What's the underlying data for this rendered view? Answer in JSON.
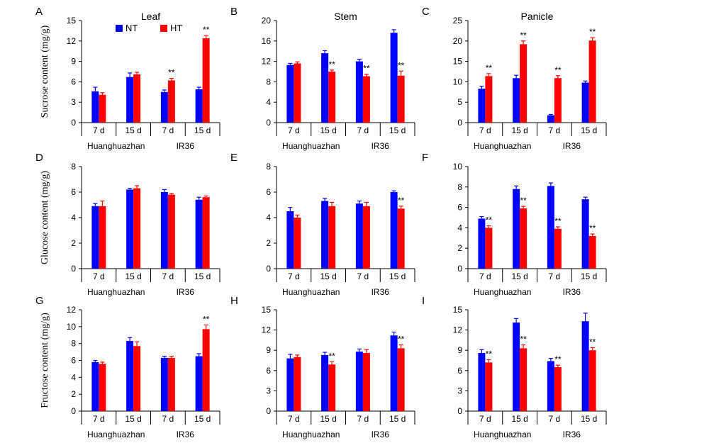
{
  "colors": {
    "NT": "#0000ff",
    "HT": "#ff0000",
    "axis": "#000000"
  },
  "legend": [
    {
      "name": "NT",
      "color": "#0000ff"
    },
    {
      "name": "HT",
      "color": "#ff0000"
    }
  ],
  "chart_data": [
    {
      "id": "A",
      "panel_letter": "A",
      "title": "Leaf",
      "type": "bar",
      "ylabel": "Sucrose content (mg/g)",
      "ylim": [
        0,
        15
      ],
      "yticks": [
        0,
        3,
        6,
        9,
        12,
        15
      ],
      "categories": [
        "7 d",
        "15 d",
        "7 d",
        "15 d"
      ],
      "groups": [
        "Huanghuazhan",
        "IR36"
      ],
      "series": [
        {
          "name": "NT",
          "values": [
            4.6,
            6.7,
            4.5,
            4.9
          ],
          "errors": [
            0.6,
            0.6,
            0.3,
            0.3
          ]
        },
        {
          "name": "HT",
          "values": [
            4.1,
            7.1,
            6.2,
            12.4
          ],
          "errors": [
            0.3,
            0.3,
            0.3,
            0.4
          ]
        }
      ],
      "significance": [
        "",
        "",
        "**",
        "**"
      ]
    },
    {
      "id": "B",
      "panel_letter": "B",
      "title": "Stem",
      "type": "bar",
      "ylabel": "",
      "ylim": [
        0,
        20
      ],
      "yticks": [
        0,
        4,
        8,
        12,
        16,
        20
      ],
      "categories": [
        "7 d",
        "15 d",
        "7 d",
        "15 d"
      ],
      "groups": [
        "Huanghuazhan",
        "IR36"
      ],
      "series": [
        {
          "name": "NT",
          "values": [
            11.3,
            13.6,
            12.0,
            17.6
          ],
          "errors": [
            0.3,
            0.5,
            0.4,
            0.6
          ]
        },
        {
          "name": "HT",
          "values": [
            11.6,
            10.0,
            9.1,
            9.2
          ],
          "errors": [
            0.3,
            0.3,
            0.4,
            0.9
          ]
        }
      ],
      "significance": [
        "",
        "**",
        "**",
        "**"
      ]
    },
    {
      "id": "C",
      "panel_letter": "C",
      "title": "Panicle",
      "type": "bar",
      "ylabel": "",
      "ylim": [
        0,
        25
      ],
      "yticks": [
        0,
        5,
        10,
        15,
        20,
        25
      ],
      "categories": [
        "7 d",
        "15 d",
        "7 d",
        "15 d"
      ],
      "groups": [
        "Huanghuazhan",
        "IR36"
      ],
      "series": [
        {
          "name": "NT",
          "values": [
            8.3,
            10.9,
            1.8,
            9.8
          ],
          "errors": [
            0.6,
            0.7,
            0.2,
            0.4
          ]
        },
        {
          "name": "HT",
          "values": [
            11.4,
            19.2,
            10.9,
            20.1
          ],
          "errors": [
            0.6,
            0.8,
            0.6,
            0.7
          ]
        }
      ],
      "significance": [
        "**",
        "**",
        "**",
        "**"
      ]
    },
    {
      "id": "D",
      "panel_letter": "D",
      "title": "",
      "type": "bar",
      "ylabel": "Glucose content (mg/g)",
      "ylim": [
        0,
        8
      ],
      "yticks": [
        0,
        2,
        4,
        6,
        8
      ],
      "categories": [
        "7 d",
        "15 d",
        "7 d",
        "15 d"
      ],
      "groups": [
        "Huanghuazhan",
        "IR36"
      ],
      "series": [
        {
          "name": "NT",
          "values": [
            4.9,
            6.2,
            6.0,
            5.4
          ],
          "errors": [
            0.2,
            0.1,
            0.2,
            0.2
          ]
        },
        {
          "name": "HT",
          "values": [
            4.9,
            6.3,
            5.8,
            5.6
          ],
          "errors": [
            0.4,
            0.2,
            0.1,
            0.1
          ]
        }
      ],
      "significance": [
        "",
        "",
        "",
        ""
      ]
    },
    {
      "id": "E",
      "panel_letter": "E",
      "title": "",
      "type": "bar",
      "ylabel": "",
      "ylim": [
        0,
        8
      ],
      "yticks": [
        0,
        2,
        4,
        6,
        8
      ],
      "categories": [
        "7 d",
        "15 d",
        "7 d",
        "15 d"
      ],
      "groups": [
        "Huanghuazhan",
        "IR36"
      ],
      "series": [
        {
          "name": "NT",
          "values": [
            4.5,
            5.3,
            5.1,
            6.0
          ],
          "errors": [
            0.3,
            0.2,
            0.2,
            0.1
          ]
        },
        {
          "name": "HT",
          "values": [
            4.0,
            4.9,
            4.9,
            4.7
          ],
          "errors": [
            0.2,
            0.3,
            0.3,
            0.2
          ]
        }
      ],
      "significance": [
        "",
        "",
        "",
        "**"
      ]
    },
    {
      "id": "F",
      "panel_letter": "F",
      "title": "",
      "type": "bar",
      "ylabel": "",
      "ylim": [
        0,
        10
      ],
      "yticks": [
        0,
        2,
        4,
        6,
        8,
        10
      ],
      "categories": [
        "7 d",
        "15 d",
        "7 d",
        "15 d"
      ],
      "groups": [
        "Huanghuazhan",
        "IR36"
      ],
      "series": [
        {
          "name": "NT",
          "values": [
            4.9,
            7.8,
            8.1,
            6.8
          ],
          "errors": [
            0.2,
            0.3,
            0.3,
            0.2
          ]
        },
        {
          "name": "HT",
          "values": [
            4.0,
            5.9,
            3.9,
            3.2
          ],
          "errors": [
            0.2,
            0.2,
            0.2,
            0.2
          ]
        }
      ],
      "significance": [
        "**",
        "**",
        "**",
        "**"
      ]
    },
    {
      "id": "G",
      "panel_letter": "G",
      "title": "",
      "type": "bar",
      "ylabel": "Fructose content (mg/g)",
      "ylim": [
        0,
        12
      ],
      "yticks": [
        0,
        2,
        4,
        6,
        8,
        10,
        12
      ],
      "categories": [
        "7 d",
        "15 d",
        "7 d",
        "15 d"
      ],
      "groups": [
        "Huanghuazhan",
        "IR36"
      ],
      "series": [
        {
          "name": "NT",
          "values": [
            5.8,
            8.3,
            6.3,
            6.5
          ],
          "errors": [
            0.2,
            0.4,
            0.2,
            0.3
          ]
        },
        {
          "name": "HT",
          "values": [
            5.6,
            7.7,
            6.3,
            9.7
          ],
          "errors": [
            0.2,
            0.5,
            0.2,
            0.5
          ]
        }
      ],
      "significance": [
        "",
        "",
        "",
        "**"
      ]
    },
    {
      "id": "H",
      "panel_letter": "H",
      "title": "",
      "type": "bar",
      "ylabel": "",
      "ylim": [
        0,
        15
      ],
      "yticks": [
        0,
        3,
        6,
        9,
        12,
        15
      ],
      "categories": [
        "7 d",
        "15 d",
        "7 d",
        "15 d"
      ],
      "groups": [
        "Huanghuazhan",
        "IR36"
      ],
      "series": [
        {
          "name": "NT",
          "values": [
            7.8,
            8.3,
            8.8,
            11.2
          ],
          "errors": [
            0.6,
            0.4,
            0.4,
            0.5
          ]
        },
        {
          "name": "HT",
          "values": [
            8.0,
            6.9,
            8.6,
            9.3
          ],
          "errors": [
            0.3,
            0.4,
            0.5,
            0.5
          ]
        }
      ],
      "significance": [
        "",
        "**",
        "",
        "**"
      ]
    },
    {
      "id": "I",
      "panel_letter": "I",
      "title": "",
      "type": "bar",
      "ylabel": "",
      "ylim": [
        0,
        15
      ],
      "yticks": [
        0,
        3,
        6,
        9,
        12,
        15
      ],
      "categories": [
        "7 d",
        "15 d",
        "7 d",
        "15 d"
      ],
      "groups": [
        "Huanghuazhan",
        "IR36"
      ],
      "series": [
        {
          "name": "NT",
          "values": [
            8.6,
            13.1,
            7.4,
            13.3
          ],
          "errors": [
            0.5,
            0.6,
            0.4,
            1.2
          ]
        },
        {
          "name": "HT",
          "values": [
            7.2,
            9.3,
            6.5,
            9.0
          ],
          "errors": [
            0.4,
            0.5,
            0.3,
            0.4
          ]
        }
      ],
      "significance": [
        "**",
        "**",
        "**",
        "**"
      ]
    }
  ]
}
